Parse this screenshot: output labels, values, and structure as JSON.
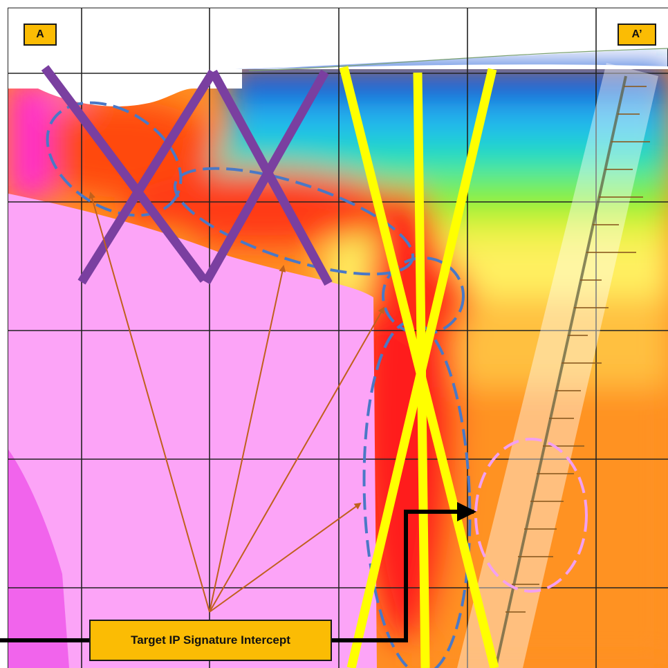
{
  "section": {
    "start_label": "A",
    "end_label": "A’"
  },
  "callout": {
    "text": "Target IP Signature Intercept"
  },
  "colors": {
    "label_fill": "#fbbc04",
    "strike_purple": "#7a3fa0",
    "strike_yellow": "#ffff00",
    "ellipse_blue": "#4a78c6",
    "ellipse_pink": "#f3a0f0",
    "arrow_brown": "#c0601c",
    "pointer_black": "#000000",
    "resistivity_low": "#ff00ff",
    "resistivity_high": "#0033cc"
  }
}
